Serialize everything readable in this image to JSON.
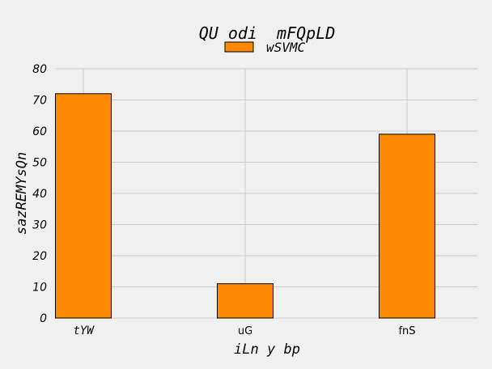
{
  "chart_data": {
    "type": "bar",
    "title": "QU odi  mFQpLD",
    "xlabel": "iLn y bp",
    "ylabel": "sazREMYsQn",
    "categories": [
      "tYW",
      "uG",
      "fnS"
    ],
    "series": [
      {
        "name": "wSVMC",
        "values": [
          72,
          11,
          59
        ],
        "color": "#ff8800"
      }
    ],
    "ylim": [
      0,
      80
    ],
    "yticks": [
      0,
      10,
      20,
      30,
      40,
      50,
      60,
      70,
      80
    ],
    "grid": true,
    "legend_position": "top-center"
  }
}
